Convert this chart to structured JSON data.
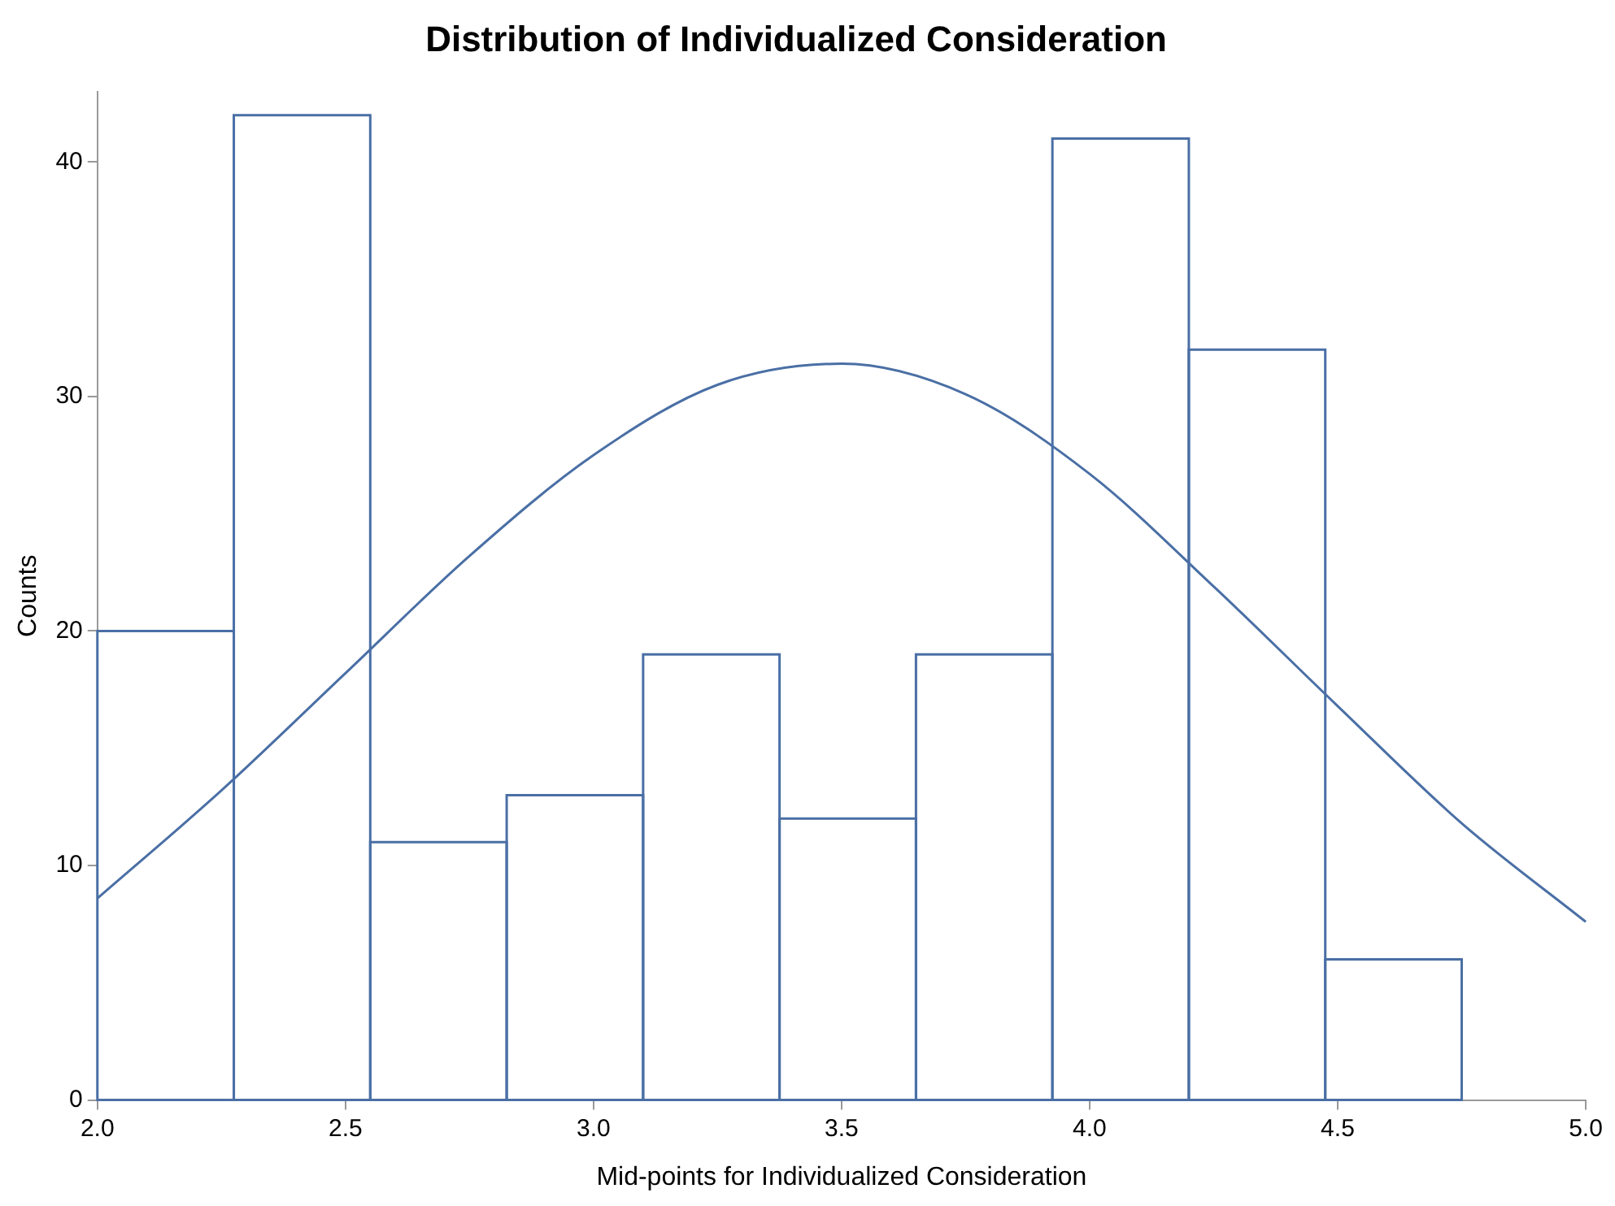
{
  "chart_data": {
    "type": "histogram",
    "title": "Distribution of Individualized Consideration",
    "xlabel": "Mid-points for Individualized Consideration",
    "ylabel": "Counts",
    "bins": [
      2.0,
      2.275,
      2.55,
      2.825,
      3.1,
      3.375,
      3.65,
      3.925,
      4.2,
      4.475,
      4.75
    ],
    "values": [
      20,
      42,
      11,
      13,
      19,
      12,
      19,
      41,
      32,
      6
    ],
    "color": "#4a6fa5",
    "series": [
      {
        "type": "line",
        "color": "#4a6fa5",
        "x": [
          2.0,
          2.25,
          2.5,
          2.75,
          3.0,
          3.25,
          3.5,
          3.75,
          4.0,
          4.25,
          4.5,
          4.75,
          5.0
        ],
        "values": [
          8.6,
          13.2,
          18.2,
          23.2,
          27.5,
          30.5,
          31.4,
          30.1,
          26.7,
          21.9,
          16.8,
          11.8,
          7.6
        ]
      }
    ],
    "xlim": [
      2.0,
      5.0
    ],
    "xticks": [
      {
        "value": 2,
        "label": "2.0"
      },
      {
        "value": 2.5,
        "label": "2.5"
      },
      {
        "value": 3,
        "label": "3.0"
      },
      {
        "value": 3.5,
        "label": "3.5"
      },
      {
        "value": 4,
        "label": "4.0"
      },
      {
        "value": 4.5,
        "label": "4.5"
      },
      {
        "value": 5,
        "label": "5.0"
      }
    ],
    "ylim": [
      0,
      43
    ],
    "yticks": [
      0,
      10,
      20,
      30,
      40
    ],
    "grid": false,
    "legend": false,
    "marker": "none",
    "line_style": "solid"
  }
}
